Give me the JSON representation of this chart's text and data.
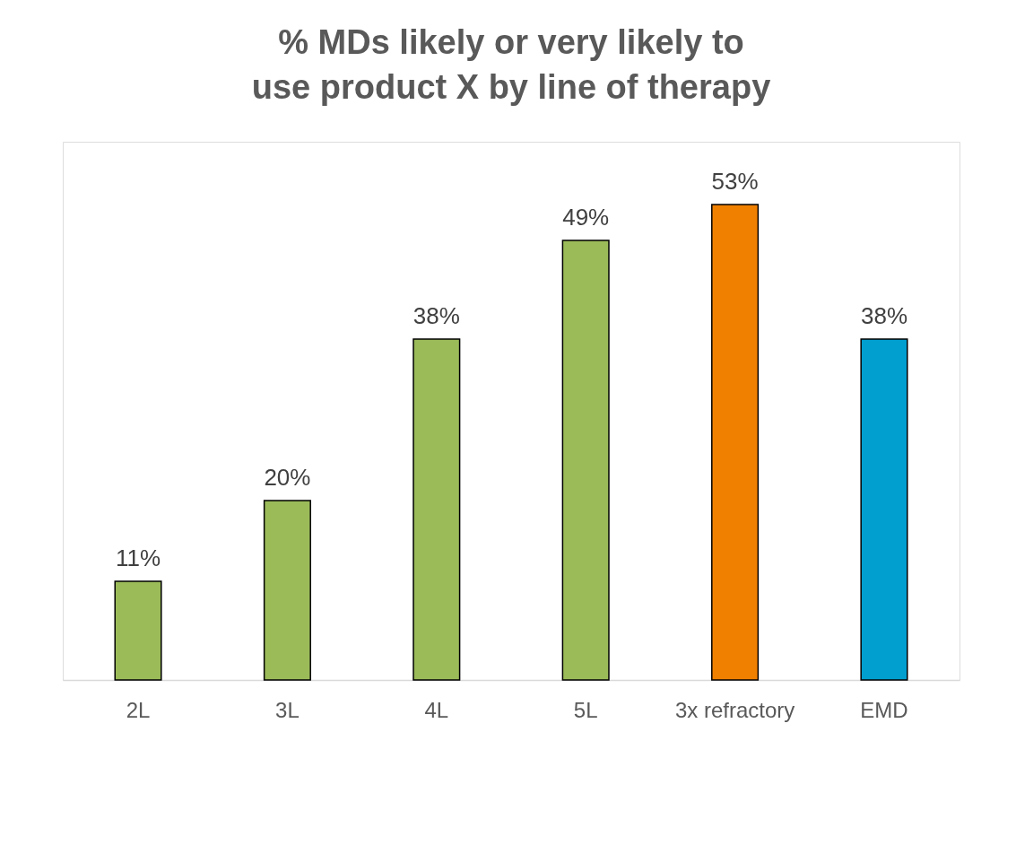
{
  "chart_data": {
    "type": "bar",
    "title": "% MDs likely or very likely to use product X by line of therapy",
    "categories": [
      "2L",
      "3L",
      "4L",
      "5L",
      "3x refractory",
      "EMD"
    ],
    "values": [
      11,
      20,
      38,
      49,
      53,
      38
    ],
    "colors": [
      "#9bbb59",
      "#9bbb59",
      "#9bbb59",
      "#9bbb59",
      "#f08000",
      "#009fcf"
    ],
    "value_labels": [
      "11%",
      "20%",
      "38%",
      "49%",
      "53%",
      "38%"
    ],
    "ylim": [
      0,
      60
    ],
    "grid": false,
    "tick_labels": "x"
  }
}
